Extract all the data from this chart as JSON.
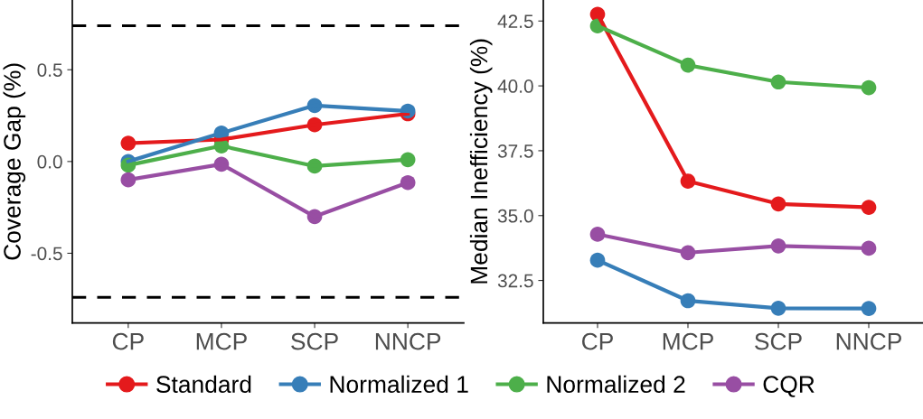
{
  "chart_data": [
    {
      "type": "line",
      "ylabel": "Coverage Gap (%)",
      "categories": [
        "CP",
        "MCP",
        "SCP",
        "NNCP"
      ],
      "ylim": [
        -0.88,
        0.88
      ],
      "yticks": [
        {
          "value": -0.5,
          "label": "-0.5"
        },
        {
          "value": 0,
          "label": "0.0"
        },
        0.5
      ],
      "marker": "circle",
      "line_style": "solid",
      "grid": false,
      "legend": "bottom",
      "series": [
        {
          "name": "Standard",
          "color": "#e41a1c",
          "values": [
            0.1,
            0.12,
            0.2,
            0.26
          ]
        },
        {
          "name": "Normalized 1",
          "color": "#377eb8",
          "values": [
            0.0,
            0.155,
            0.305,
            0.275
          ]
        },
        {
          "name": "Normalized 2",
          "color": "#4daf4a",
          "values": [
            -0.02,
            0.085,
            -0.025,
            0.01
          ]
        },
        {
          "name": "CQR",
          "color": "#984ea3",
          "values": [
            -0.1,
            -0.015,
            -0.3,
            -0.115
          ]
        }
      ],
      "ref_lines": [
        {
          "axis": "y",
          "value": 0.74,
          "color": "#000000",
          "line_style": "dashed"
        },
        {
          "axis": "y",
          "value": -0.74,
          "color": "#000000",
          "line_style": "dashed"
        }
      ]
    },
    {
      "type": "line",
      "ylabel": "Median Inefficiency (%)",
      "categories": [
        "CP",
        "MCP",
        "SCP",
        "NNCP"
      ],
      "ylim": [
        30.86,
        43.31
      ],
      "yticks": [
        32.5,
        {
          "value": 35,
          "label": "35.0"
        },
        37.5,
        {
          "value": 40,
          "label": "40.0"
        },
        42.5
      ],
      "marker": "circle",
      "line_style": "solid",
      "grid": false,
      "series": [
        {
          "color": "#e41a1c",
          "values": [
            42.76,
            36.33,
            35.45,
            35.32
          ]
        },
        {
          "color": "#377eb8",
          "values": [
            33.28,
            31.72,
            31.43,
            31.42
          ]
        },
        {
          "color": "#4daf4a",
          "values": [
            42.31,
            40.8,
            40.15,
            39.93
          ]
        },
        {
          "color": "#984ea3",
          "values": [
            34.28,
            33.57,
            33.83,
            33.74
          ]
        }
      ]
    }
  ]
}
